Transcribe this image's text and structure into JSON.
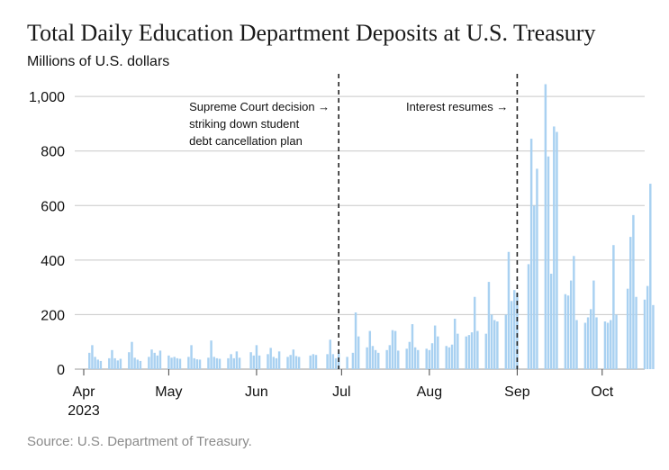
{
  "title": "Total Daily Education Department Deposits at U.S. Treasury",
  "subtitle": "Millions of U.S. dollars",
  "source": "Source: U.S. Department of Treasury.",
  "colors": {
    "bar": "#a9d1f1",
    "grid": "#c8c8c8",
    "marker": "#222222"
  },
  "chart_data": {
    "type": "bar",
    "ylim": [
      0,
      1050
    ],
    "yticks": [
      0,
      200,
      400,
      600,
      800,
      1000
    ],
    "ytick_labels": [
      "0",
      "200",
      "400",
      "600",
      "800",
      "1,000"
    ],
    "xlim": [
      "2023-04-01",
      "2023-10-16"
    ],
    "xticks": [
      {
        "date": "2023-04-01",
        "label": "Apr",
        "sublabel": "2023"
      },
      {
        "date": "2023-05-01",
        "label": "May",
        "sublabel": ""
      },
      {
        "date": "2023-06-01",
        "label": "Jun",
        "sublabel": ""
      },
      {
        "date": "2023-07-01",
        "label": "Jul",
        "sublabel": ""
      },
      {
        "date": "2023-08-01",
        "label": "Aug",
        "sublabel": ""
      },
      {
        "date": "2023-09-01",
        "label": "Sep",
        "sublabel": ""
      },
      {
        "date": "2023-10-01",
        "label": "Oct",
        "sublabel": ""
      }
    ],
    "grid": "horizontal",
    "annotations": [
      {
        "date": "2023-06-30",
        "lines": [
          "Supreme Court decision →",
          "striking down student",
          "debt cancellation plan"
        ],
        "side": "left"
      },
      {
        "date": "2023-09-01",
        "lines": [
          "Interest resumes →"
        ],
        "side": "left"
      }
    ],
    "points": [
      [
        "2023-04-03",
        60
      ],
      [
        "2023-04-04",
        88
      ],
      [
        "2023-04-05",
        45
      ],
      [
        "2023-04-06",
        35
      ],
      [
        "2023-04-07",
        30
      ],
      [
        "2023-04-10",
        40
      ],
      [
        "2023-04-11",
        70
      ],
      [
        "2023-04-12",
        40
      ],
      [
        "2023-04-13",
        32
      ],
      [
        "2023-04-14",
        38
      ],
      [
        "2023-04-17",
        62
      ],
      [
        "2023-04-18",
        100
      ],
      [
        "2023-04-19",
        42
      ],
      [
        "2023-04-20",
        35
      ],
      [
        "2023-04-21",
        30
      ],
      [
        "2023-04-24",
        45
      ],
      [
        "2023-04-25",
        72
      ],
      [
        "2023-04-26",
        60
      ],
      [
        "2023-04-27",
        50
      ],
      [
        "2023-04-28",
        68
      ],
      [
        "2023-05-01",
        50
      ],
      [
        "2023-05-02",
        42
      ],
      [
        "2023-05-03",
        45
      ],
      [
        "2023-05-04",
        40
      ],
      [
        "2023-05-05",
        38
      ],
      [
        "2023-05-08",
        45
      ],
      [
        "2023-05-09",
        88
      ],
      [
        "2023-05-10",
        40
      ],
      [
        "2023-05-11",
        36
      ],
      [
        "2023-05-12",
        35
      ],
      [
        "2023-05-15",
        42
      ],
      [
        "2023-05-16",
        105
      ],
      [
        "2023-05-17",
        45
      ],
      [
        "2023-05-18",
        40
      ],
      [
        "2023-05-19",
        38
      ],
      [
        "2023-05-22",
        40
      ],
      [
        "2023-05-23",
        55
      ],
      [
        "2023-05-24",
        40
      ],
      [
        "2023-05-25",
        65
      ],
      [
        "2023-05-26",
        42
      ],
      [
        "2023-05-30",
        62
      ],
      [
        "2023-05-31",
        50
      ],
      [
        "2023-06-01",
        88
      ],
      [
        "2023-06-02",
        50
      ],
      [
        "2023-06-05",
        55
      ],
      [
        "2023-06-06",
        78
      ],
      [
        "2023-06-07",
        45
      ],
      [
        "2023-06-08",
        40
      ],
      [
        "2023-06-09",
        65
      ],
      [
        "2023-06-12",
        45
      ],
      [
        "2023-06-13",
        52
      ],
      [
        "2023-06-14",
        72
      ],
      [
        "2023-06-15",
        48
      ],
      [
        "2023-06-16",
        45
      ],
      [
        "2023-06-20",
        50
      ],
      [
        "2023-06-21",
        55
      ],
      [
        "2023-06-22",
        52
      ],
      [
        "2023-06-26",
        55
      ],
      [
        "2023-06-27",
        108
      ],
      [
        "2023-06-28",
        55
      ],
      [
        "2023-06-29",
        40
      ],
      [
        "2023-06-30",
        60
      ],
      [
        "2023-07-03",
        45
      ],
      [
        "2023-07-05",
        60
      ],
      [
        "2023-07-06",
        208
      ],
      [
        "2023-07-07",
        120
      ],
      [
        "2023-07-10",
        80
      ],
      [
        "2023-07-11",
        140
      ],
      [
        "2023-07-12",
        85
      ],
      [
        "2023-07-13",
        70
      ],
      [
        "2023-07-14",
        60
      ],
      [
        "2023-07-17",
        70
      ],
      [
        "2023-07-18",
        88
      ],
      [
        "2023-07-19",
        143
      ],
      [
        "2023-07-20",
        140
      ],
      [
        "2023-07-21",
        68
      ],
      [
        "2023-07-24",
        75
      ],
      [
        "2023-07-25",
        100
      ],
      [
        "2023-07-26",
        165
      ],
      [
        "2023-07-27",
        80
      ],
      [
        "2023-07-28",
        70
      ],
      [
        "2023-07-31",
        75
      ],
      [
        "2023-08-01",
        70
      ],
      [
        "2023-08-02",
        95
      ],
      [
        "2023-08-03",
        160
      ],
      [
        "2023-08-04",
        120
      ],
      [
        "2023-08-07",
        85
      ],
      [
        "2023-08-08",
        80
      ],
      [
        "2023-08-09",
        90
      ],
      [
        "2023-08-10",
        185
      ],
      [
        "2023-08-11",
        130
      ],
      [
        "2023-08-14",
        120
      ],
      [
        "2023-08-15",
        125
      ],
      [
        "2023-08-16",
        135
      ],
      [
        "2023-08-17",
        265
      ],
      [
        "2023-08-18",
        140
      ],
      [
        "2023-08-21",
        130
      ],
      [
        "2023-08-22",
        320
      ],
      [
        "2023-08-23",
        200
      ],
      [
        "2023-08-24",
        180
      ],
      [
        "2023-08-25",
        175
      ],
      [
        "2023-08-28",
        200
      ],
      [
        "2023-08-29",
        430
      ],
      [
        "2023-08-30",
        250
      ],
      [
        "2023-08-31",
        290
      ],
      [
        "2023-09-01",
        280
      ],
      [
        "2023-09-05",
        385
      ],
      [
        "2023-09-06",
        845
      ],
      [
        "2023-09-07",
        600
      ],
      [
        "2023-09-08",
        735
      ],
      [
        "2023-09-11",
        1045
      ],
      [
        "2023-09-12",
        780
      ],
      [
        "2023-09-13",
        350
      ],
      [
        "2023-09-14",
        890
      ],
      [
        "2023-09-15",
        870
      ],
      [
        "2023-09-18",
        275
      ],
      [
        "2023-09-19",
        270
      ],
      [
        "2023-09-20",
        325
      ],
      [
        "2023-09-21",
        415
      ],
      [
        "2023-09-22",
        180
      ],
      [
        "2023-09-25",
        170
      ],
      [
        "2023-09-26",
        190
      ],
      [
        "2023-09-27",
        220
      ],
      [
        "2023-09-28",
        325
      ],
      [
        "2023-09-29",
        190
      ],
      [
        "2023-10-02",
        175
      ],
      [
        "2023-10-03",
        170
      ],
      [
        "2023-10-04",
        180
      ],
      [
        "2023-10-05",
        455
      ],
      [
        "2023-10-06",
        200
      ],
      [
        "2023-10-10",
        295
      ],
      [
        "2023-10-11",
        485
      ],
      [
        "2023-10-12",
        565
      ],
      [
        "2023-10-13",
        265
      ],
      [
        "2023-10-16",
        255
      ],
      [
        "2023-10-17",
        305
      ],
      [
        "2023-10-18",
        680
      ],
      [
        "2023-10-19",
        235
      ]
    ]
  }
}
